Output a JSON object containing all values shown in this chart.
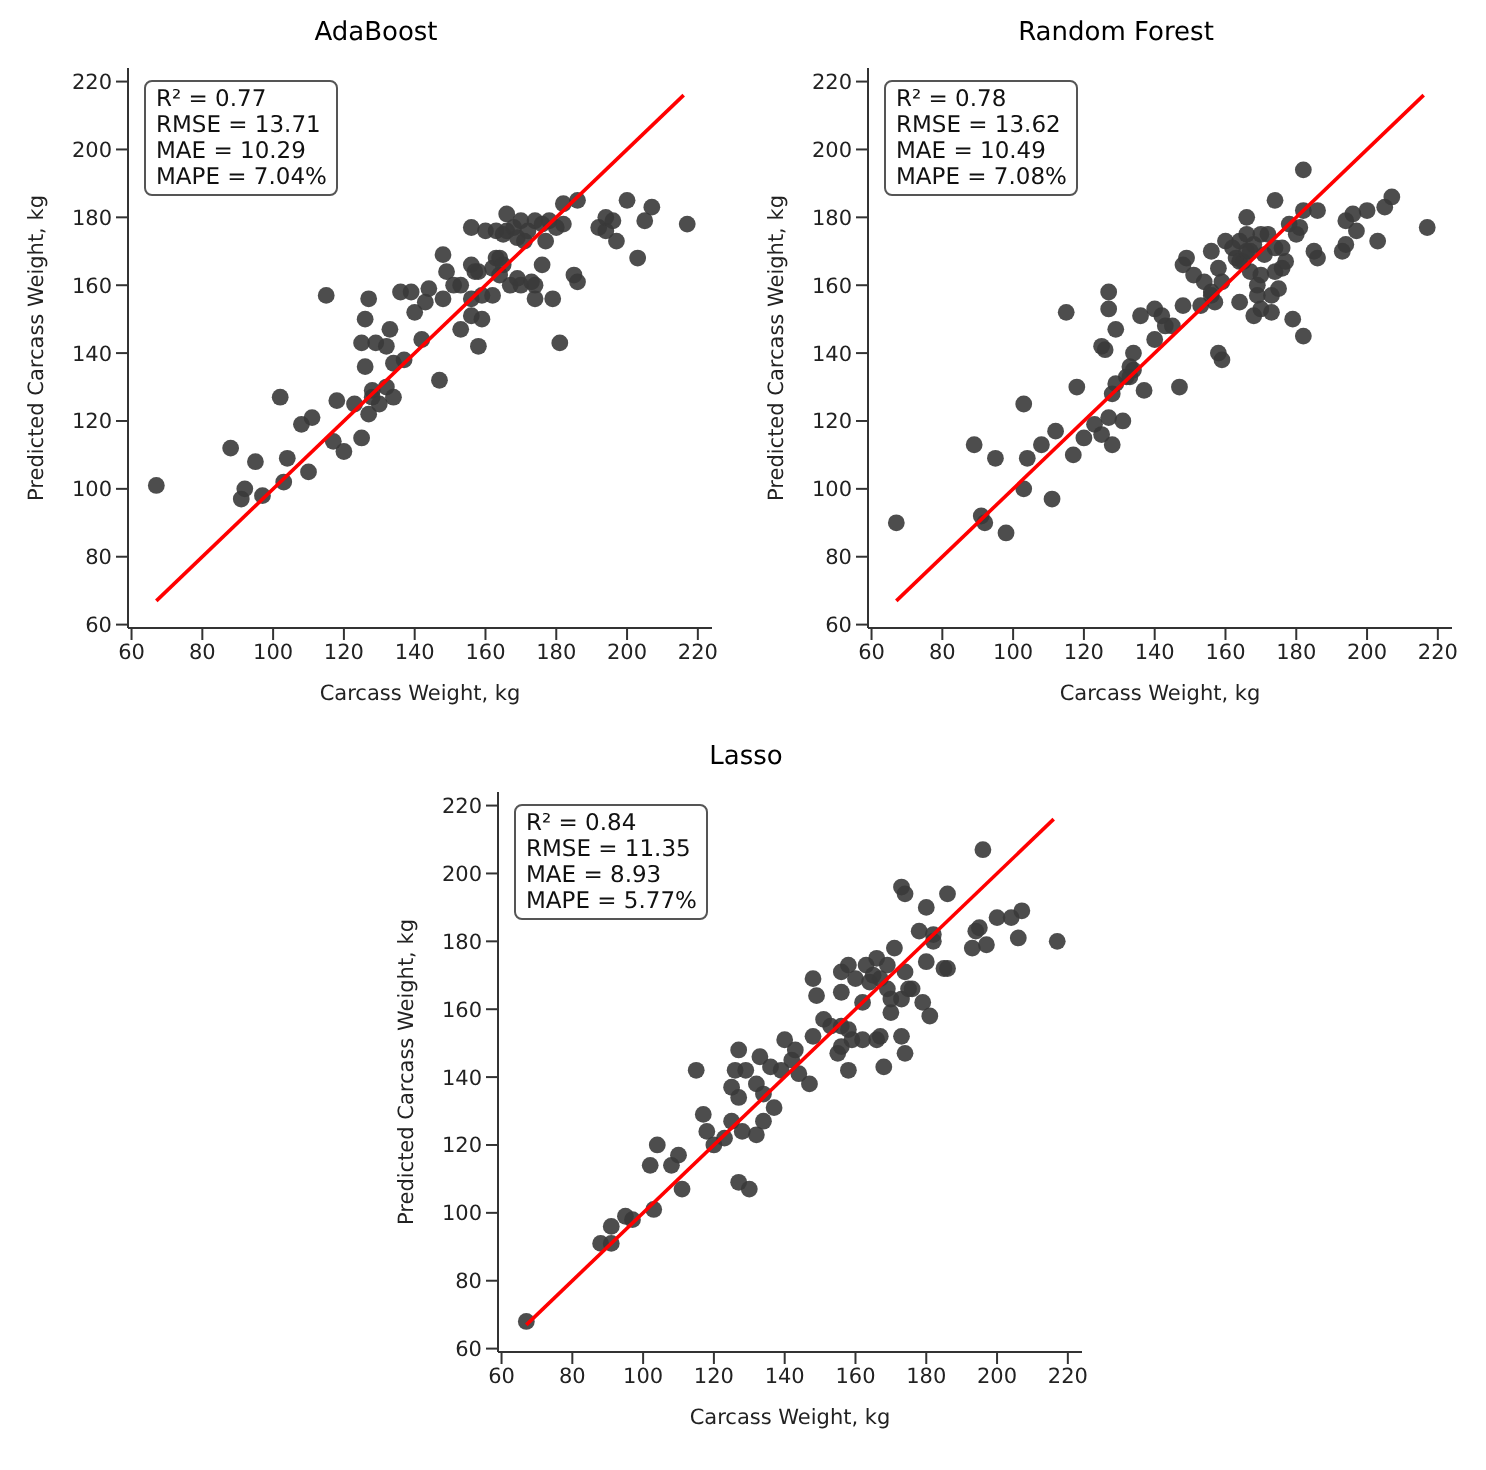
{
  "chart_data": [
    {
      "type": "scatter",
      "title": "AdaBoost",
      "xlabel": "Carcass Weight, kg",
      "ylabel": "Predicted Carcass Weight, kg",
      "xlim": [
        59,
        224
      ],
      "ylim": [
        59,
        224
      ],
      "xticks": [
        60,
        80,
        100,
        120,
        140,
        160,
        180,
        200,
        220
      ],
      "yticks": [
        60,
        80,
        100,
        120,
        140,
        160,
        180,
        200,
        220
      ],
      "grid": false,
      "legend": false,
      "marker": "circle",
      "annotations": [
        "R² = 0.77",
        "RMSE = 13.71",
        "MAE = 10.29",
        "MAPE = 7.04%"
      ],
      "series": [
        {
          "color": "#3a3a3a",
          "x": [
            67,
            88,
            92,
            91,
            95,
            97,
            102,
            104,
            103,
            108,
            111,
            110,
            115,
            117,
            118,
            120,
            123,
            125,
            126,
            125,
            126,
            127,
            127,
            128,
            128,
            129,
            130,
            132,
            132,
            133,
            134,
            134,
            136,
            137,
            139,
            140,
            142,
            143,
            144,
            147,
            148,
            148,
            149,
            151,
            153,
            153,
            156,
            156,
            156,
            156,
            157,
            158,
            159,
            158,
            159,
            160,
            162,
            162,
            163,
            163,
            164,
            165,
            164,
            165,
            166,
            166,
            167,
            168,
            169,
            169,
            170,
            170,
            171,
            172,
            173,
            174,
            174,
            174,
            176,
            176,
            177,
            178,
            179,
            180,
            181,
            182,
            182,
            185,
            186,
            186,
            192,
            194,
            194,
            196,
            197,
            200,
            203,
            205,
            207,
            217
          ],
          "values": [
            101,
            112,
            100,
            97,
            108,
            98,
            127,
            109,
            102,
            119,
            121,
            105,
            157,
            114,
            126,
            111,
            125,
            115,
            136,
            143,
            150,
            156,
            122,
            127,
            129,
            143,
            125,
            142,
            130,
            147,
            127,
            137,
            158,
            138,
            158,
            152,
            144,
            155,
            159,
            132,
            169,
            156,
            164,
            160,
            147,
            160,
            177,
            166,
            151,
            156,
            164,
            164,
            150,
            142,
            157,
            176,
            157,
            165,
            176,
            168,
            168,
            166,
            163,
            175,
            181,
            176,
            160,
            177,
            162,
            174,
            179,
            160,
            173,
            176,
            161,
            179,
            160,
            156,
            166,
            178,
            173,
            179,
            156,
            177,
            143,
            184,
            178,
            163,
            185,
            161,
            177,
            176,
            180,
            179,
            173,
            185,
            168,
            179,
            183,
            178
          ]
        },
        {
          "type": "line",
          "color": "#ff0000",
          "marker": "none",
          "x": [
            67,
            216
          ],
          "values": [
            67,
            216
          ]
        }
      ]
    },
    {
      "type": "scatter",
      "title": "Random Forest",
      "xlabel": "Carcass Weight, kg",
      "ylabel": "Predicted Carcass Weight, kg",
      "xlim": [
        59,
        224
      ],
      "ylim": [
        59,
        224
      ],
      "xticks": [
        60,
        80,
        100,
        120,
        140,
        160,
        180,
        200,
        220
      ],
      "yticks": [
        60,
        80,
        100,
        120,
        140,
        160,
        180,
        200,
        220
      ],
      "grid": false,
      "legend": false,
      "marker": "circle",
      "annotations": [
        "R² = 0.78",
        "RMSE = 13.62",
        "MAE = 10.49",
        "MAPE = 7.08%"
      ],
      "series": [
        {
          "color": "#3a3a3a",
          "x": [
            67,
            89,
            91,
            92,
            95,
            98,
            103,
            103,
            104,
            108,
            111,
            112,
            115,
            117,
            118,
            120,
            123,
            125,
            125,
            126,
            127,
            127,
            127,
            128,
            128,
            129,
            129,
            131,
            132,
            133,
            133,
            134,
            134,
            136,
            137,
            140,
            140,
            142,
            143,
            145,
            147,
            148,
            148,
            149,
            151,
            153,
            154,
            156,
            156,
            156,
            157,
            158,
            158,
            159,
            159,
            160,
            162,
            163,
            164,
            164,
            164,
            165,
            166,
            166,
            166,
            167,
            167,
            168,
            168,
            169,
            169,
            170,
            170,
            170,
            171,
            172,
            173,
            173,
            174,
            174,
            174,
            175,
            176,
            176,
            177,
            178,
            179,
            180,
            181,
            182,
            182,
            182,
            185,
            186,
            186,
            193,
            194,
            194,
            196,
            197,
            200,
            203,
            205,
            207,
            217
          ],
          "values": [
            90,
            113,
            92,
            90,
            109,
            87,
            125,
            100,
            109,
            113,
            97,
            117,
            152,
            110,
            130,
            115,
            119,
            116,
            142,
            141,
            153,
            121,
            158,
            113,
            128,
            131,
            147,
            120,
            133,
            133,
            136,
            140,
            135,
            151,
            129,
            144,
            153,
            151,
            148,
            148,
            130,
            166,
            154,
            168,
            163,
            154,
            161,
            157,
            170,
            158,
            155,
            165,
            140,
            138,
            161,
            173,
            171,
            168,
            155,
            173,
            167,
            167,
            175,
            180,
            170,
            164,
            170,
            151,
            172,
            160,
            157,
            163,
            153,
            175,
            169,
            175,
            152,
            157,
            185,
            171,
            164,
            159,
            165,
            171,
            167,
            178,
            150,
            175,
            177,
            145,
            182,
            194,
            170,
            182,
            168,
            170,
            179,
            172,
            181,
            176,
            182,
            173,
            183,
            186,
            177
          ]
        },
        {
          "type": "line",
          "color": "#ff0000",
          "marker": "none",
          "x": [
            67,
            216
          ],
          "values": [
            67,
            216
          ]
        }
      ]
    },
    {
      "type": "scatter",
      "title": "Lasso",
      "xlabel": "Carcass Weight, kg",
      "ylabel": "Predicted Carcass Weight, kg",
      "xlim": [
        59,
        224
      ],
      "ylim": [
        59,
        224
      ],
      "xticks": [
        60,
        80,
        100,
        120,
        140,
        160,
        180,
        200,
        220
      ],
      "yticks": [
        60,
        80,
        100,
        120,
        140,
        160,
        180,
        200,
        220
      ],
      "grid": false,
      "legend": false,
      "marker": "circle",
      "annotations": [
        "R² = 0.84",
        "RMSE = 11.35",
        "MAE = 8.93",
        "MAPE = 5.77%"
      ],
      "series": [
        {
          "color": "#3a3a3a",
          "x": [
            67,
            88,
            91,
            91,
            95,
            97,
            103,
            102,
            104,
            108,
            110,
            111,
            115,
            117,
            118,
            120,
            123,
            125,
            125,
            126,
            127,
            127,
            127,
            128,
            129,
            130,
            132,
            132,
            133,
            134,
            134,
            136,
            137,
            139,
            140,
            142,
            143,
            144,
            147,
            148,
            148,
            149,
            151,
            153,
            155,
            156,
            156,
            156,
            156,
            158,
            158,
            158,
            159,
            160,
            162,
            162,
            163,
            164,
            165,
            166,
            166,
            167,
            167,
            168,
            169,
            169,
            170,
            170,
            171,
            173,
            173,
            173,
            174,
            174,
            174,
            175,
            176,
            178,
            179,
            180,
            180,
            181,
            182,
            182,
            185,
            186,
            186,
            193,
            194,
            195,
            196,
            197,
            200,
            204,
            206,
            207,
            217
          ],
          "values": [
            68,
            91,
            91,
            96,
            99,
            98,
            101,
            114,
            120,
            114,
            117,
            107,
            142,
            129,
            124,
            120,
            122,
            127,
            137,
            142,
            134,
            148,
            109,
            124,
            142,
            107,
            138,
            123,
            146,
            127,
            135,
            143,
            131,
            142,
            151,
            145,
            148,
            141,
            138,
            169,
            152,
            164,
            157,
            155,
            147,
            149,
            171,
            165,
            155,
            154,
            173,
            142,
            151,
            169,
            162,
            151,
            173,
            168,
            170,
            175,
            151,
            152,
            169,
            143,
            173,
            166,
            159,
            163,
            178,
            152,
            163,
            196,
            194,
            171,
            147,
            166,
            166,
            183,
            162,
            174,
            190,
            158,
            182,
            180,
            172,
            172,
            194,
            178,
            183,
            184,
            207,
            179,
            187,
            187,
            181,
            189,
            180
          ]
        },
        {
          "type": "line",
          "color": "#ff0000",
          "marker": "none",
          "x": [
            67,
            216
          ],
          "values": [
            67,
            216
          ]
        }
      ]
    }
  ]
}
